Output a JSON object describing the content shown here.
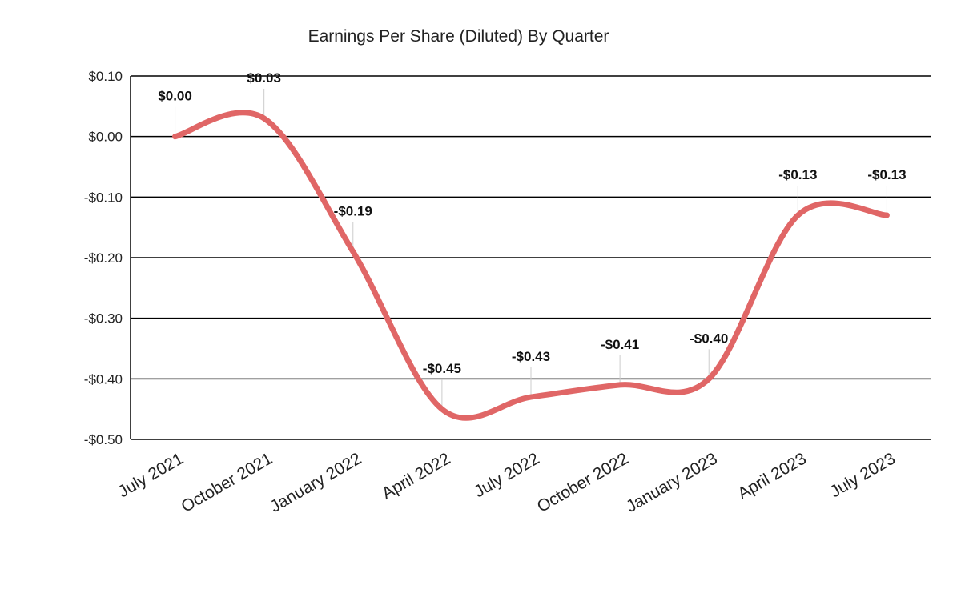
{
  "chart_data": {
    "type": "line",
    "title": "Earnings Per Share (Diluted) By Quarter",
    "xlabel": "",
    "ylabel": "",
    "categories": [
      "July 2021",
      "October 2021",
      "January 2022",
      "April 2022",
      "July 2022",
      "October 2022",
      "January 2023",
      "April 2023",
      "July 2023"
    ],
    "series": [
      {
        "values": [
          0.0,
          0.03,
          -0.19,
          -0.45,
          -0.43,
          -0.41,
          -0.4,
          -0.13,
          -0.13
        ],
        "labels": [
          "$0.00",
          "$0.03",
          "-$0.19",
          "-$0.45",
          "-$0.43",
          "-$0.41",
          "-$0.40",
          "-$0.13",
          "-$0.13"
        ],
        "color": "#e06666"
      }
    ],
    "ylim": [
      -0.5,
      0.1
    ],
    "yticks": [
      0.1,
      0.0,
      -0.1,
      -0.2,
      -0.3,
      -0.4,
      -0.5
    ],
    "ytick_labels": [
      "$0.10",
      "$0.00",
      "-$0.10",
      "-$0.20",
      "-$0.30",
      "-$0.40",
      "-$0.50"
    ],
    "grid": true,
    "smooth": true,
    "legend": "none"
  }
}
